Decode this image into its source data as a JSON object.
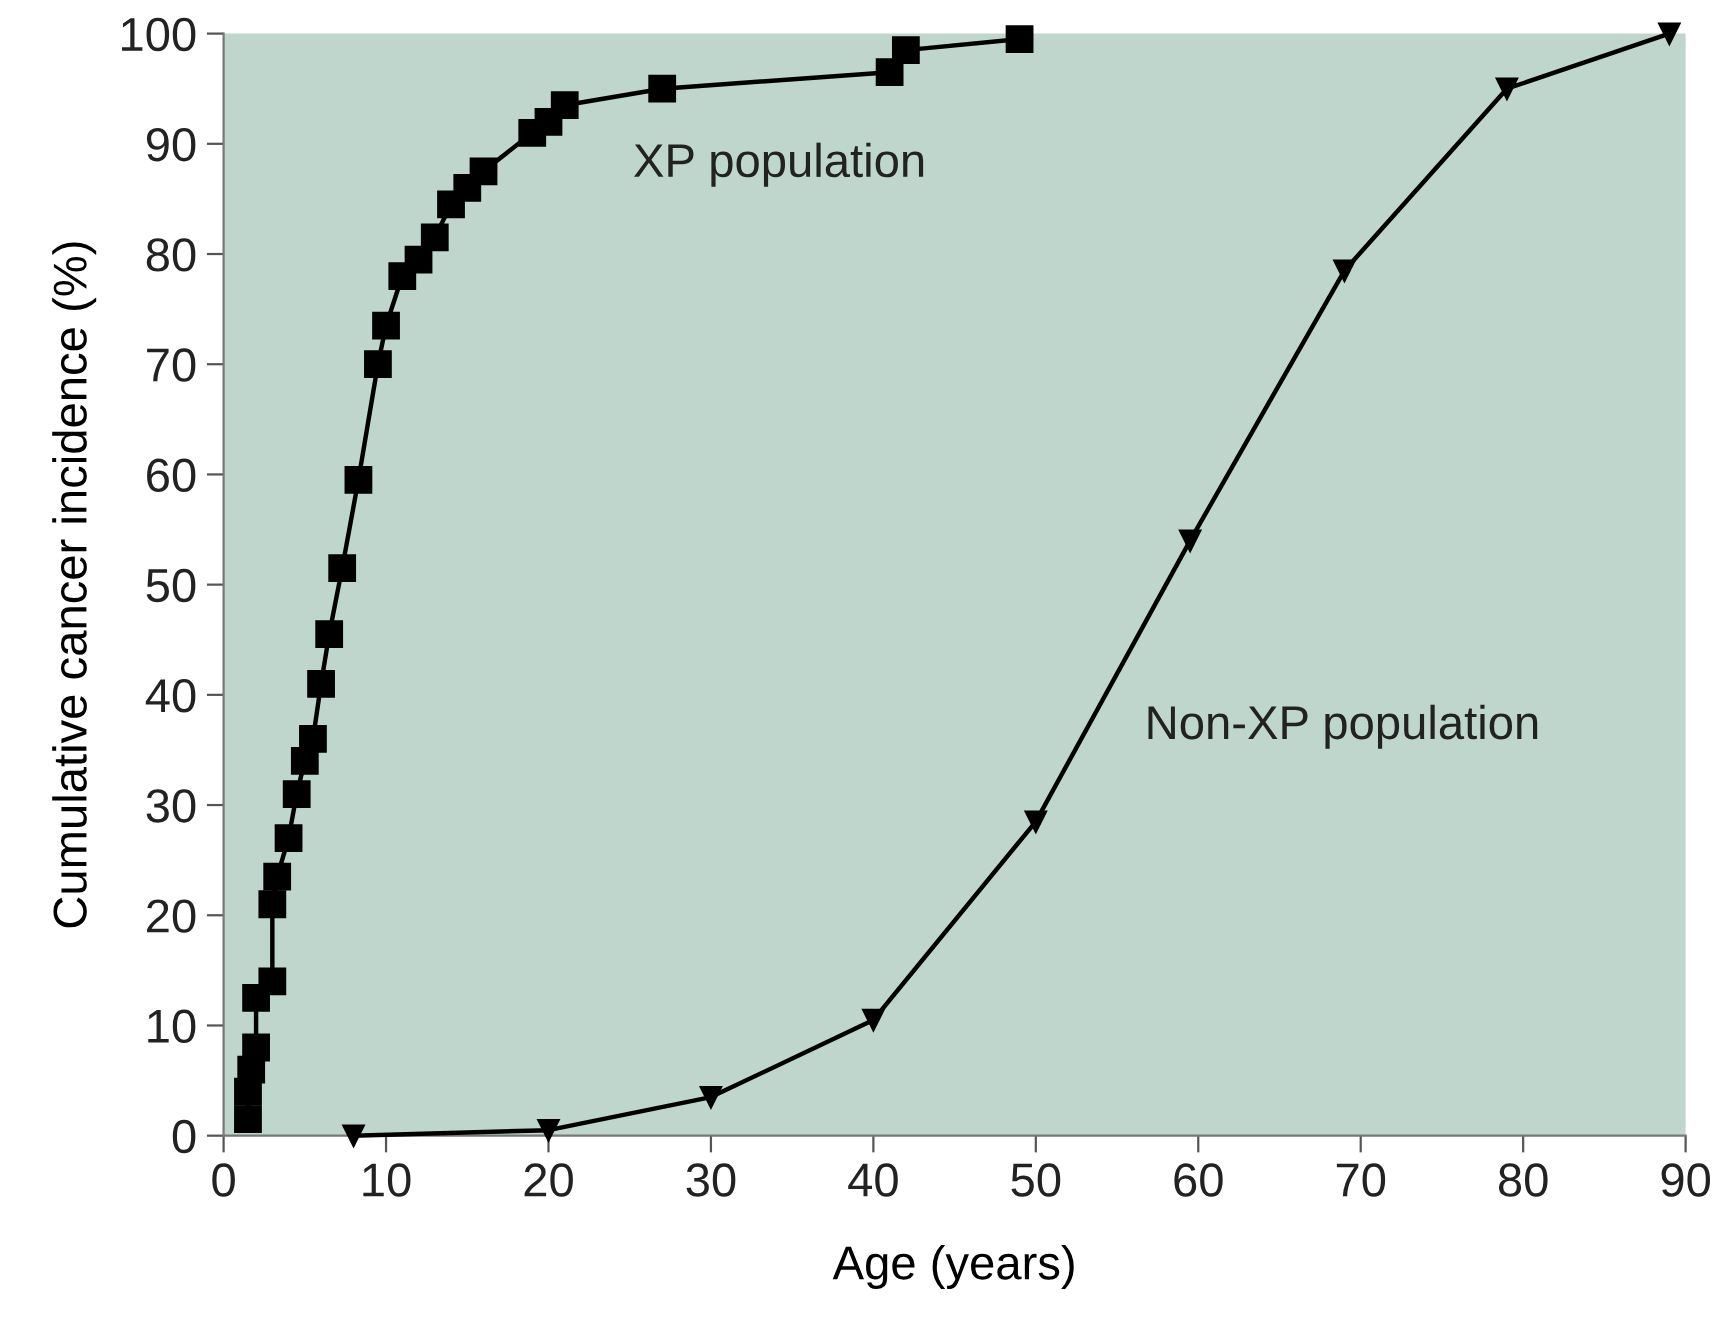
{
  "chart_data": {
    "type": "line",
    "xlabel": "Age (years)",
    "ylabel": "Cumulative cancer incidence (%)",
    "xlim": [
      0,
      90
    ],
    "xticks": [
      0,
      10,
      20,
      30,
      40,
      50,
      60,
      70,
      80,
      90
    ],
    "ylim": [
      0,
      100
    ],
    "yticks": [
      0,
      10,
      20,
      30,
      40,
      50,
      60,
      70,
      80,
      90,
      100
    ],
    "grid": false,
    "legend": false,
    "series": [
      {
        "name": "XP population",
        "color": "#000000",
        "marker": "square",
        "x": [
          1.5,
          1.5,
          1.7,
          2,
          2,
          3,
          3,
          3.3,
          4,
          4.5,
          5,
          5.5,
          6,
          6.5,
          7.3,
          8.3,
          9.5,
          10,
          11,
          12,
          13,
          14,
          15,
          16,
          19,
          20,
          21,
          27,
          41,
          42,
          49
        ],
        "values": [
          1.5,
          4,
          6,
          8,
          12.5,
          14,
          21,
          23.5,
          27,
          31,
          34,
          36,
          41,
          45.5,
          51.5,
          59.5,
          70,
          73.5,
          78,
          79.5,
          81.5,
          84.5,
          86,
          87.5,
          91,
          92,
          93.5,
          95,
          96.5,
          98.5,
          99.5
        ]
      },
      {
        "name": "Non-XP population",
        "color": "#000000",
        "marker": "triangle",
        "x": [
          8,
          20,
          30,
          40,
          50,
          59.5,
          69,
          79,
          89
        ],
        "values": [
          0,
          0.5,
          3.5,
          10.5,
          28.5,
          54,
          78.5,
          95,
          100
        ]
      }
    ]
  }
}
